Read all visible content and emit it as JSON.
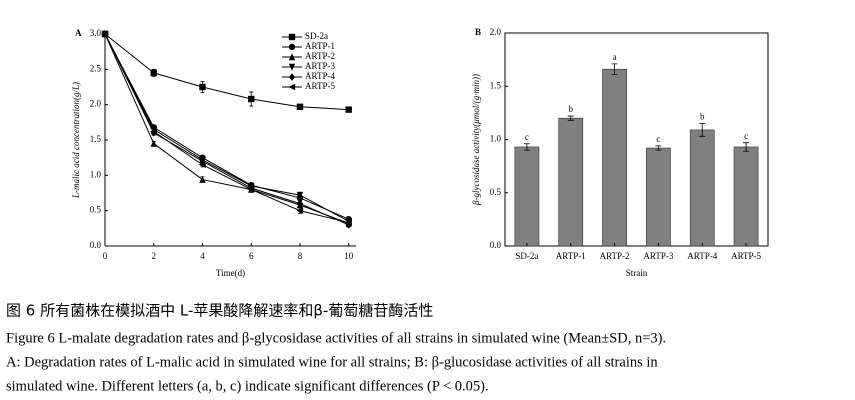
{
  "chart_data": [
    {
      "type": "line",
      "panel": "A",
      "xlabel": "Time(d)",
      "ylabel": "L-malic acid concentration(g/L)",
      "x": [
        0,
        2,
        4,
        6,
        8,
        10
      ],
      "xlim": [
        0,
        10.3
      ],
      "xticks": [
        0,
        2,
        4,
        6,
        8,
        10
      ],
      "ylim": [
        0,
        3
      ],
      "yticks": [
        {
          "value": 0,
          "label": "0.0"
        },
        {
          "value": 0.5,
          "label": "0.5"
        },
        {
          "value": 1,
          "label": "1.0"
        },
        {
          "value": 1.5,
          "label": "1.5"
        },
        {
          "value": 2,
          "label": "2.0"
        },
        {
          "value": 2.5,
          "label": "2.5"
        },
        {
          "value": 3,
          "label": "3.0"
        }
      ],
      "frame": false,
      "legend": "top-right",
      "series": [
        {
          "name": "SD-2a",
          "color": "#000000",
          "marker": "square",
          "values": [
            3.0,
            2.45,
            2.25,
            2.08,
            1.97,
            1.93
          ],
          "errors": [
            0,
            0.05,
            0.08,
            0.1,
            0.03,
            0.02
          ]
        },
        {
          "name": "ARTP-1",
          "color": "#000000",
          "marker": "circle",
          "values": [
            3.0,
            1.68,
            1.25,
            0.86,
            0.68,
            0.38
          ],
          "errors": [
            0,
            0.03,
            0.03,
            0.03,
            0.04,
            0.03
          ]
        },
        {
          "name": "ARTP-2",
          "color": "#000000",
          "marker": "triangle-up",
          "values": [
            3.0,
            1.45,
            0.94,
            0.8,
            0.58,
            0.32
          ],
          "errors": [
            0,
            0.03,
            0.04,
            0.04,
            0.04,
            0.03
          ]
        },
        {
          "name": "ARTP-3",
          "color": "#000000",
          "marker": "triangle-down",
          "values": [
            3.0,
            1.65,
            1.22,
            0.85,
            0.72,
            0.35
          ],
          "errors": [
            0,
            0.03,
            0.03,
            0.03,
            0.04,
            0.03
          ]
        },
        {
          "name": "ARTP-4",
          "color": "#000000",
          "marker": "diamond",
          "values": [
            3.0,
            1.6,
            1.2,
            0.82,
            0.6,
            0.3
          ],
          "errors": [
            0,
            0.03,
            0.03,
            0.03,
            0.04,
            0.03
          ]
        },
        {
          "name": "ARTP-5",
          "color": "#000000",
          "marker": "triangle-left",
          "values": [
            3.0,
            1.62,
            1.15,
            0.8,
            0.5,
            0.33
          ],
          "errors": [
            0,
            0.03,
            0.03,
            0.03,
            0.04,
            0.03
          ]
        }
      ]
    },
    {
      "type": "bar",
      "panel": "B",
      "xlabel": "Strain",
      "ylabel": "β-glycosidase activity(μmol/(g·min))",
      "categories": [
        "SD-2a",
        "ARTP-1",
        "ARTP-2",
        "ARTP-3",
        "ARTP-4",
        "ARTP-5"
      ],
      "values": [
        0.93,
        1.2,
        1.66,
        0.92,
        1.09,
        0.93
      ],
      "errors": [
        0.03,
        0.02,
        0.05,
        0.02,
        0.06,
        0.04
      ],
      "letters": [
        "c",
        "b",
        "a",
        "c",
        "b",
        "c"
      ],
      "color": "#808080",
      "ylim": [
        0,
        2
      ],
      "yticks": [
        {
          "value": 0,
          "label": "0.0"
        },
        {
          "value": 0.5,
          "label": "0.5"
        },
        {
          "value": 1,
          "label": "1.0"
        },
        {
          "value": 1.5,
          "label": "1.5"
        },
        {
          "value": 2,
          "label": "2.0"
        }
      ],
      "frame": true
    }
  ],
  "caption": {
    "title": "图 6  所有菌株在模拟酒中 L-苹果酸降解速率和β-葡萄糖苷酶活性",
    "lines": [
      "Figure 6 L-malate degradation rates and β-glycosidase activities of all strains in simulated wine (Mean±SD, n=3).",
      "A: Degradation rates of L-malic acid in simulated wine for all strains; B:  β-glucosidase activities of all strains in",
      "simulated wine. Different letters (a, b, c) indicate significant differences (P < 0.05)."
    ]
  }
}
